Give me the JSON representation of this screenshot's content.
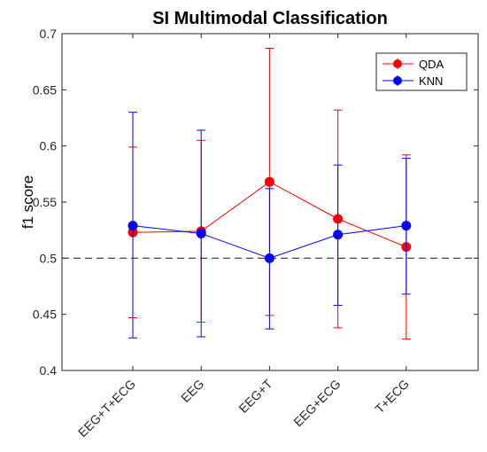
{
  "chart_data": {
    "type": "line",
    "title": "SI Multimodal Classification",
    "xlabel": "",
    "ylabel": "f1 score",
    "categories": [
      "EEG+T+ECG",
      "EEG",
      "EEG+T",
      "EEG+ECG",
      "T+ECG"
    ],
    "ylim": [
      0.4,
      0.7
    ],
    "yticks": [
      0.4,
      0.45,
      0.5,
      0.55,
      0.6,
      0.65,
      0.7
    ],
    "ytick_labels": [
      "0.4",
      "0.45",
      "0.5",
      "0.55",
      "0.6",
      "0.65",
      "0.7"
    ],
    "reference_line": {
      "y": 0.5,
      "style": "dashed",
      "color": "#333333"
    },
    "grid": false,
    "legend_position": "top-right",
    "series": [
      {
        "name": "QDA",
        "color": "#ff0000",
        "values": [
          0.523,
          0.524,
          0.568,
          0.535,
          0.51
        ],
        "upper": [
          0.599,
          0.605,
          0.687,
          0.632,
          0.592
        ],
        "lower": [
          0.447,
          0.443,
          0.449,
          0.438,
          0.428
        ]
      },
      {
        "name": "KNN",
        "color": "#0000ff",
        "values": [
          0.529,
          0.522,
          0.5,
          0.521,
          0.529
        ],
        "upper": [
          0.63,
          0.614,
          0.562,
          0.583,
          0.589
        ],
        "lower": [
          0.429,
          0.43,
          0.437,
          0.458,
          0.468
        ]
      }
    ]
  }
}
